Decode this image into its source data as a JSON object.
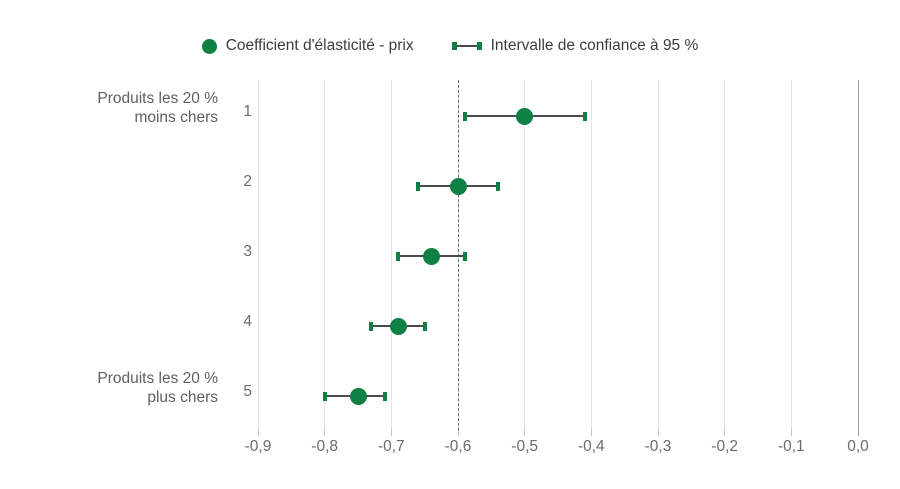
{
  "legend": {
    "coefficient_label": "Coefficient d'élasticité - prix",
    "interval_label": "Intervalle de confiance à 95 %"
  },
  "colors": {
    "accent_green": "#0e8044",
    "errorbar_line": "#4a4a4a",
    "grid": "#e4e4e4",
    "zero_line": "#9e9e9e",
    "reference_line": "#6f6f6f",
    "legend_text": "#3d3d3d",
    "axis_text": "#6c6c6c",
    "group_label_text": "#5f5f5f"
  },
  "chart_data": {
    "type": "scatter",
    "subtype": "dot-plot-with-error-bars",
    "orientation": "horizontal",
    "title": "",
    "xlabel": "",
    "ylabel": "",
    "categories": [
      "1",
      "2",
      "3",
      "4",
      "5"
    ],
    "series": [
      {
        "name": "Coefficient d'élasticité - prix",
        "values": [
          -0.5,
          -0.6,
          -0.64,
          -0.69,
          -0.75
        ]
      },
      {
        "name": "Intervalle de confiance à 95 %",
        "low": [
          -0.59,
          -0.66,
          -0.69,
          -0.73,
          -0.8
        ],
        "high": [
          -0.41,
          -0.54,
          -0.59,
          -0.65,
          -0.71
        ]
      }
    ],
    "group_labels": [
      {
        "category_index": 0,
        "lines": [
          "Produits les 20 %",
          "moins chers"
        ]
      },
      {
        "category_index": 4,
        "lines": [
          "Produits les 20 %",
          "plus chers"
        ]
      }
    ],
    "xlim": [
      -0.9,
      0.0
    ],
    "xticks": [
      -0.9,
      -0.8,
      -0.7,
      -0.6,
      -0.5,
      -0.4,
      -0.3,
      -0.2,
      -0.1,
      0.0
    ],
    "xtick_labels": [
      "-0,9",
      "-0,8",
      "-0,7",
      "-0,6",
      "-0,5",
      "-0,4",
      "-0,3",
      "-0,2",
      "-0,1",
      "0,0"
    ],
    "reference_line_x": -0.6,
    "grid": true,
    "legend_position": "top"
  }
}
